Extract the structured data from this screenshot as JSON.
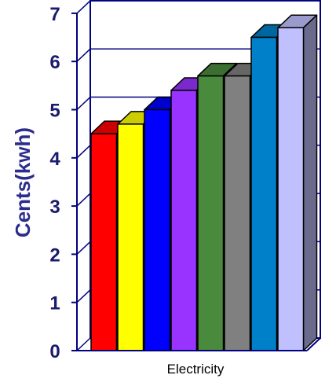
{
  "chart_data": {
    "type": "bar",
    "categories": [
      "Electricity"
    ],
    "series": [
      {
        "values": [
          4.5
        ],
        "color": "#ff0000"
      },
      {
        "values": [
          4.7
        ],
        "color": "#ffff00"
      },
      {
        "values": [
          5.0
        ],
        "color": "#0000ff"
      },
      {
        "values": [
          5.4
        ],
        "color": "#9933ff"
      },
      {
        "values": [
          5.7
        ],
        "color": "#4a8a3c"
      },
      {
        "values": [
          5.7
        ],
        "color": "#808080"
      },
      {
        "values": [
          6.5
        ],
        "color": "#0080c8"
      },
      {
        "values": [
          6.7
        ],
        "color": "#c0c0ff"
      }
    ],
    "title": "",
    "xlabel": "",
    "ylabel": "Cents(kwh)",
    "ylim": [
      0,
      7
    ],
    "yticks": [
      "0",
      "1",
      "2",
      "3",
      "4",
      "5",
      "6",
      "7"
    ],
    "grid": true,
    "style": "3d-column",
    "back_wall_color": "#6b6b8a"
  }
}
